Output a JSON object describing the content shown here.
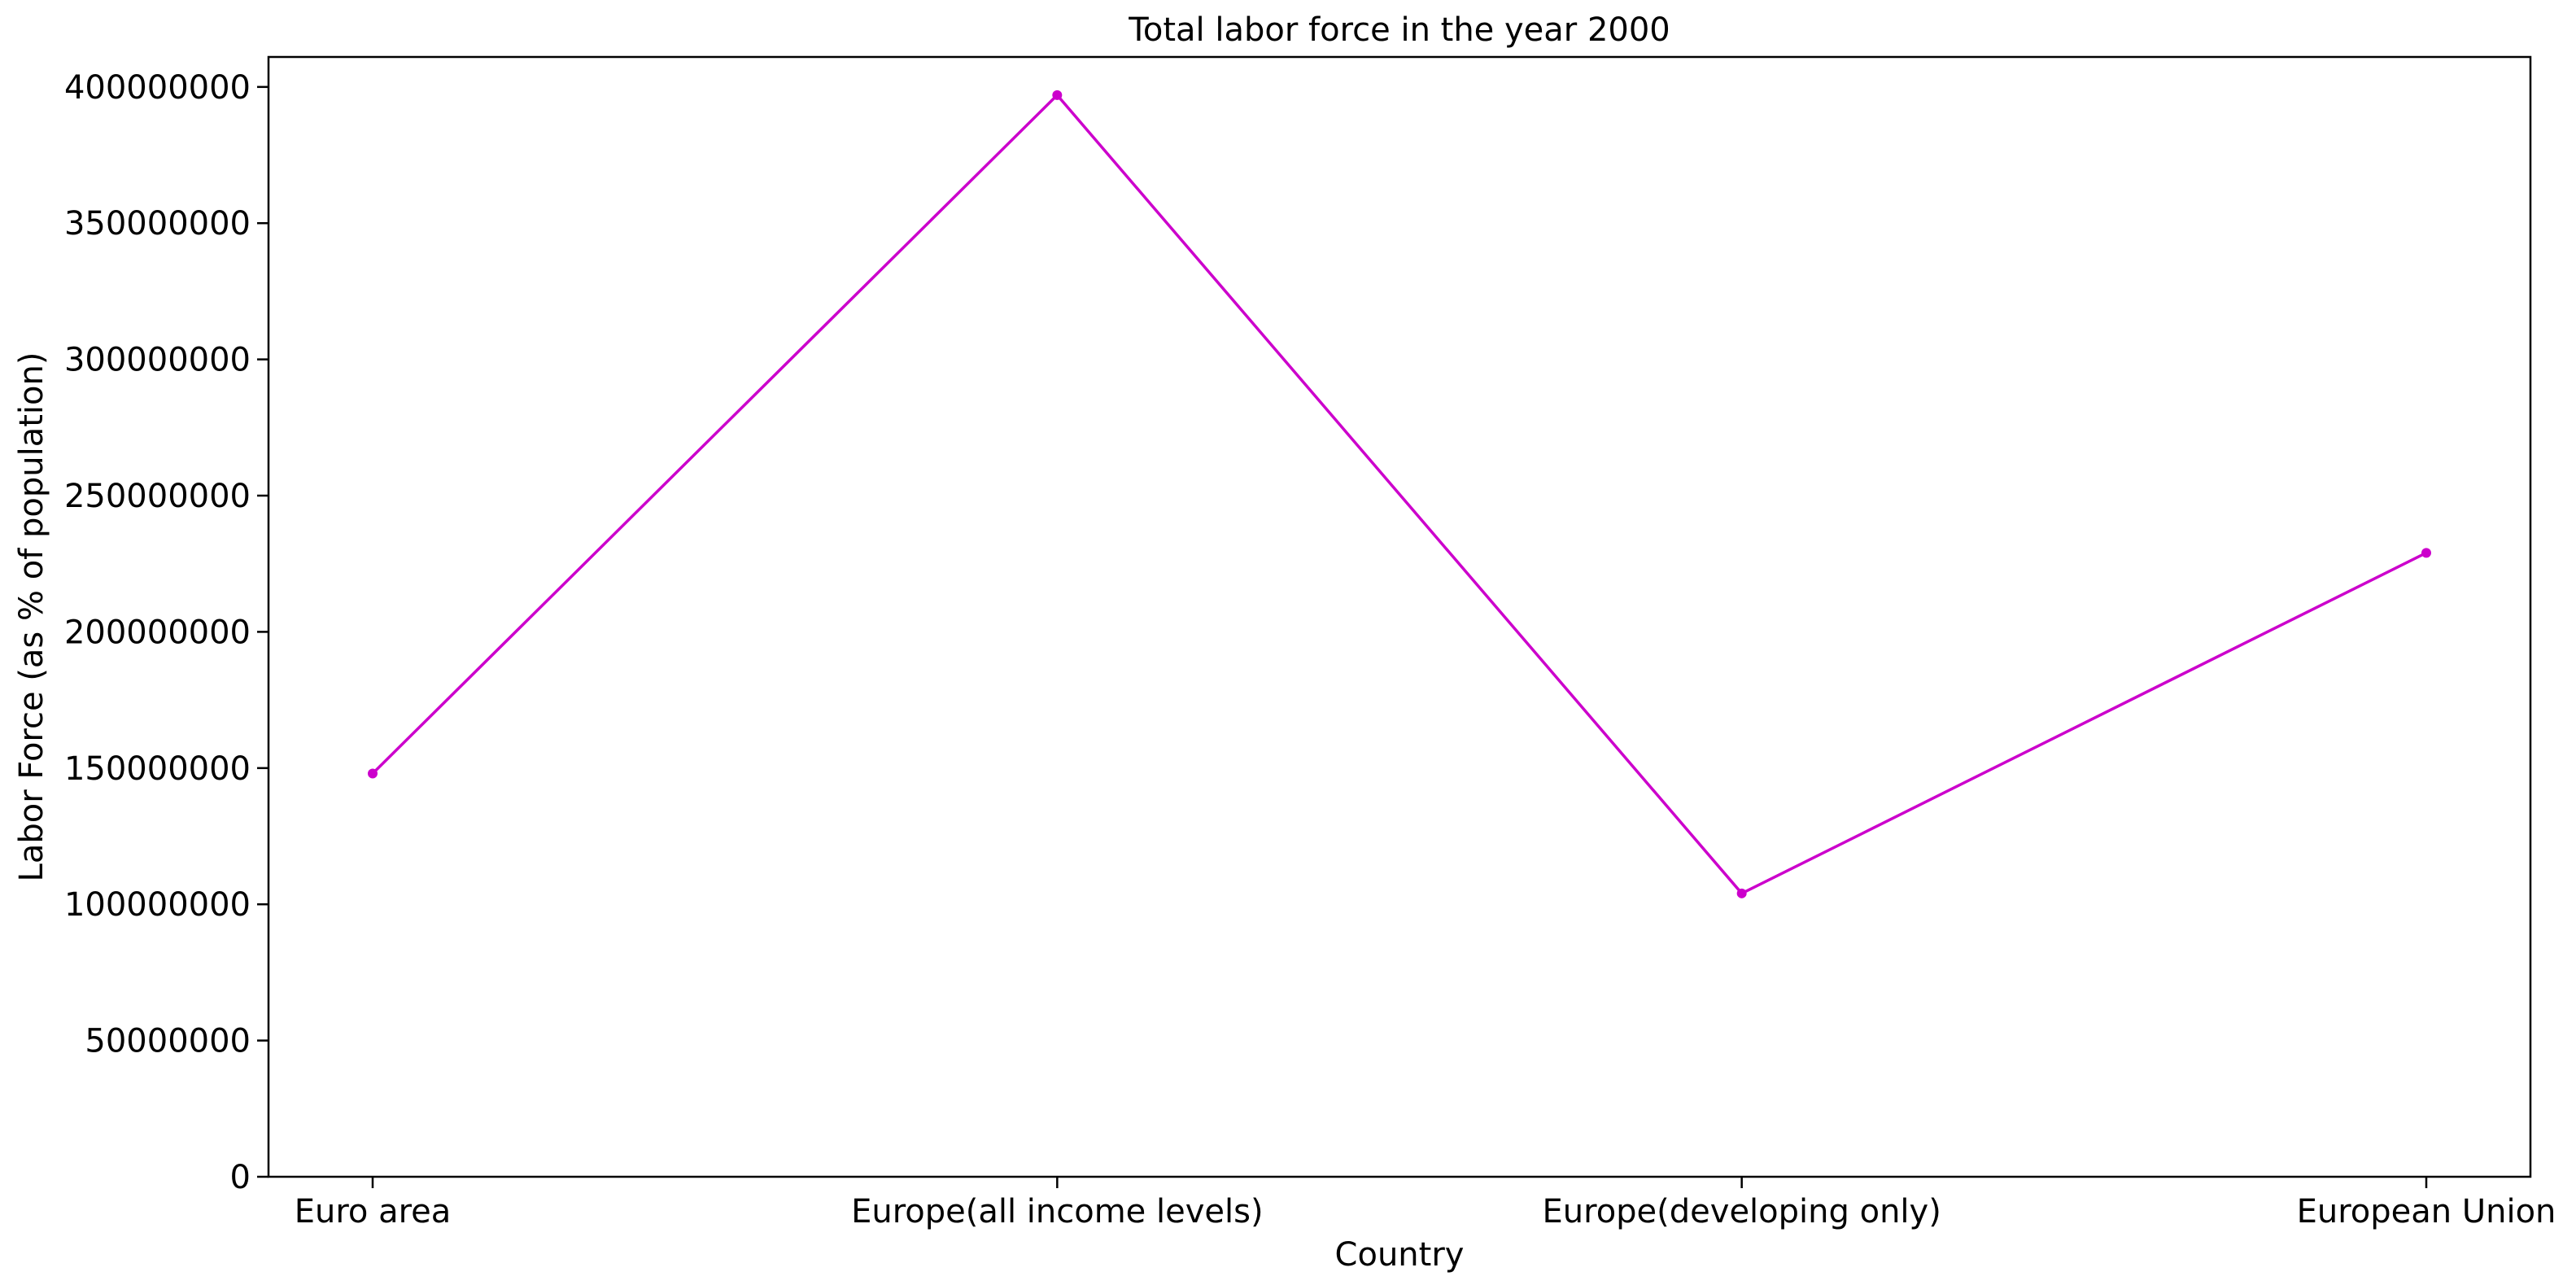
{
  "chart_data": {
    "type": "line",
    "title": "Total labor force in the year 2000",
    "xlabel": "Country",
    "ylabel": "Labor Force (as % of population)",
    "categories": [
      "Euro area",
      "Europe(all income levels)",
      "Europe(developing only)",
      "European Union"
    ],
    "series": [
      {
        "values": [
          148000000,
          397000000,
          104000000,
          229000000
        ],
        "color": "#cc00cc",
        "marker": "circle"
      }
    ],
    "ylim": [
      0,
      411000000
    ],
    "yticks": [
      0,
      50000000,
      100000000,
      150000000,
      200000000,
      250000000,
      300000000,
      350000000,
      400000000
    ],
    "ytick_labels": [
      "0",
      "50000000",
      "100000000",
      "150000000",
      "200000000",
      "250000000",
      "300000000",
      "350000000",
      "400000000"
    ],
    "grid": false,
    "legend": "none"
  }
}
